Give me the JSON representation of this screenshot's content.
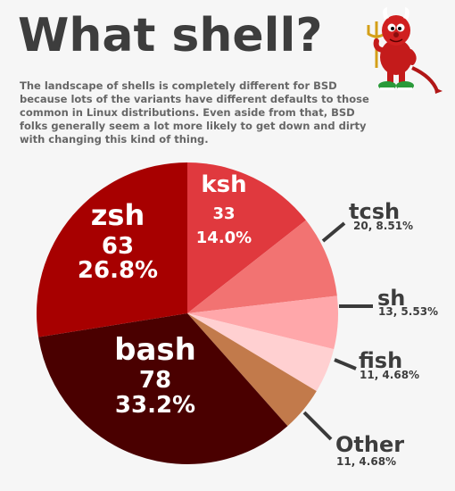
{
  "title": "What shell?",
  "subtitle": "The landscape of shells is completely different for BSD because lots of the variants have different defaults to those common in Linux distributions. Even aside from that, BSD folks generally seem a lot more likely to get down and dirty with changing this kind of thing.",
  "chart_data": {
    "type": "pie",
    "start_angle_deg": 0,
    "direction": "clockwise",
    "slices": [
      {
        "label": "ksh",
        "count": 33,
        "percent_text": "14.0%",
        "value": 14.04,
        "color": "#e0393e",
        "label_inside": true
      },
      {
        "label": "tcsh",
        "count": 20,
        "percent_text": "8.51%",
        "value": 8.51,
        "color": "#f27372",
        "label_inside": false
      },
      {
        "label": "sh",
        "count": 13,
        "percent_text": "5.53%",
        "value": 5.53,
        "color": "#ffa7aa",
        "label_inside": false
      },
      {
        "label": "fish",
        "count": 11,
        "percent_text": "4.68%",
        "value": 4.68,
        "color": "#ffd0d1",
        "label_inside": false
      },
      {
        "label": "Other",
        "count": 11,
        "percent_text": "4.68%",
        "value": 4.68,
        "color": "#c27a4b",
        "label_inside": false
      },
      {
        "label": "bash",
        "count": 78,
        "percent_text": "33.2%",
        "value": 33.19,
        "color": "#4a0000",
        "label_inside": true
      },
      {
        "label": "zsh",
        "count": 63,
        "percent_text": "26.8%",
        "value": 26.81,
        "color": "#a70000",
        "label_inside": true
      }
    ]
  }
}
